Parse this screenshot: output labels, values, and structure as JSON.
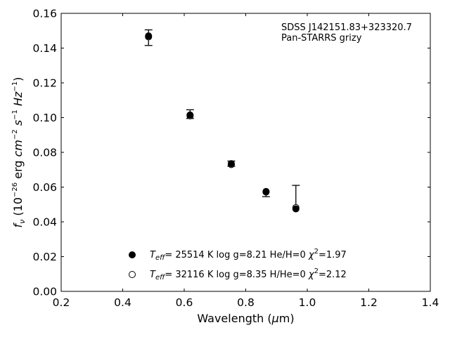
{
  "chart_data": {
    "type": "scatter",
    "xlabel_text": "Wavelength (",
    "xlabel_unit_mu": "μ",
    "xlabel_unit_rest": "m)",
    "ylabel": {
      "f": "f",
      "nu": "ν",
      "open": " (10",
      "exp1": "−26",
      "erg": " erg ",
      "cm": "cm",
      "exp2": "−2",
      "s": " s",
      "exp3": "−1",
      "hz": " Hz",
      "exp4": "−1",
      "close": ")"
    },
    "xlim": [
      0.2,
      1.4
    ],
    "ylim": [
      0.0,
      0.16
    ],
    "xticks": [
      "0.2",
      "0.4",
      "0.6",
      "0.8",
      "1.0",
      "1.2",
      "1.4"
    ],
    "yticks": [
      "0.00",
      "0.02",
      "0.04",
      "0.06",
      "0.08",
      "0.10",
      "0.12",
      "0.14",
      "0.16"
    ],
    "grid": false,
    "annotations": [
      "SDSS J142151.83+323320.7",
      "Pan-STARRS grizy"
    ],
    "observed": {
      "x": [
        0.484,
        0.619,
        0.753,
        0.866,
        0.963
      ],
      "y": [
        0.146,
        0.102,
        0.0735,
        0.057,
        0.049
      ],
      "err_low": [
        0.0045,
        0.0025,
        0.0015,
        0.0025,
        0.0
      ],
      "err_high": [
        0.0045,
        0.0025,
        0.0015,
        0.0,
        0.012
      ]
    },
    "series": [
      {
        "marker": "filled",
        "x": [
          0.484,
          0.619,
          0.753,
          0.866,
          0.963
        ],
        "y": [
          0.147,
          0.1015,
          0.0735,
          0.0575,
          0.0475
        ],
        "label": {
          "T": "T",
          "sub": "eff",
          "body": "= 25514 K  log g=8.21  He/H=0  ",
          "chi": "χ",
          "sup": "2",
          "tail": "=1.97"
        }
      },
      {
        "marker": "open",
        "x": [
          0.484,
          0.619,
          0.753,
          0.866,
          0.963
        ],
        "y": [
          0.1465,
          0.101,
          0.073,
          0.0572,
          0.0482
        ],
        "label": {
          "T": "T",
          "sub": "eff",
          "body": "= 32116 K  log g=8.35  H/He=0  ",
          "chi": "χ",
          "sup": "2",
          "tail": "=2.12"
        }
      }
    ],
    "legend_position": "lower-center"
  }
}
